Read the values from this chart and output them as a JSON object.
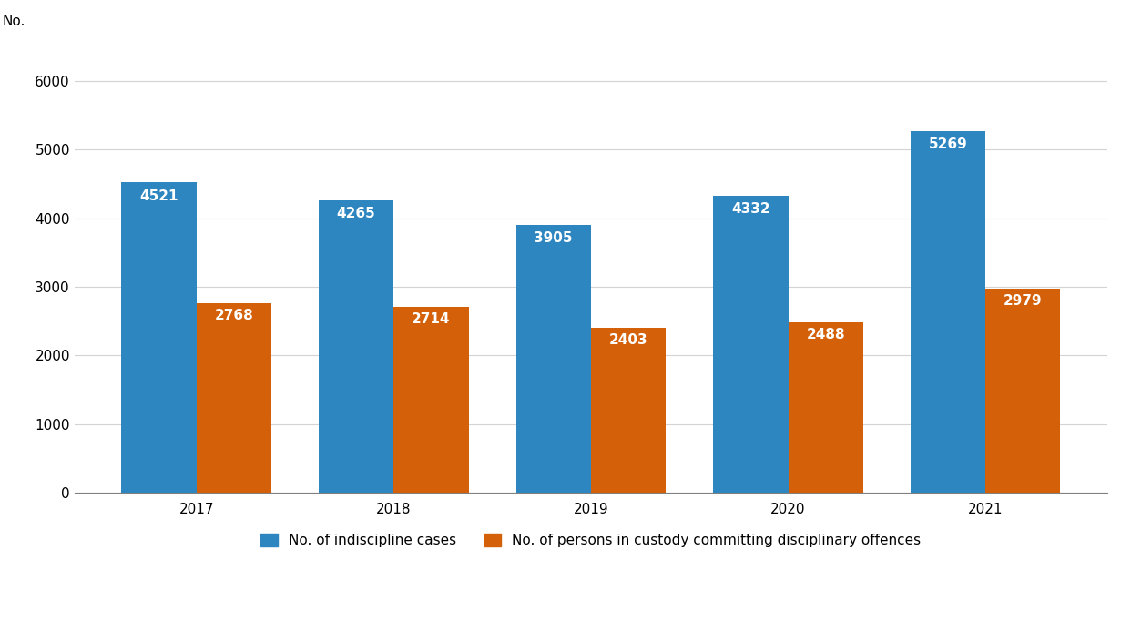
{
  "years": [
    "2017",
    "2018",
    "2019",
    "2020",
    "2021"
  ],
  "indiscipline_cases": [
    4521,
    4265,
    3905,
    4332,
    5269
  ],
  "persons_in_custody": [
    2768,
    2714,
    2403,
    2488,
    2979
  ],
  "bar_color_blue": "#2E86C1",
  "bar_color_orange": "#D4610A",
  "ylabel_text": "No.",
  "ylim": [
    0,
    6500
  ],
  "yticks": [
    0,
    1000,
    2000,
    3000,
    4000,
    5000,
    6000
  ],
  "legend_label_blue": "No. of indiscipline cases",
  "legend_label_orange": "No. of persons in custody committing disciplinary offences",
  "background_color": "#ffffff",
  "bar_width": 0.38,
  "label_fontsize": 11,
  "tick_fontsize": 11,
  "ylabel_fontsize": 11
}
